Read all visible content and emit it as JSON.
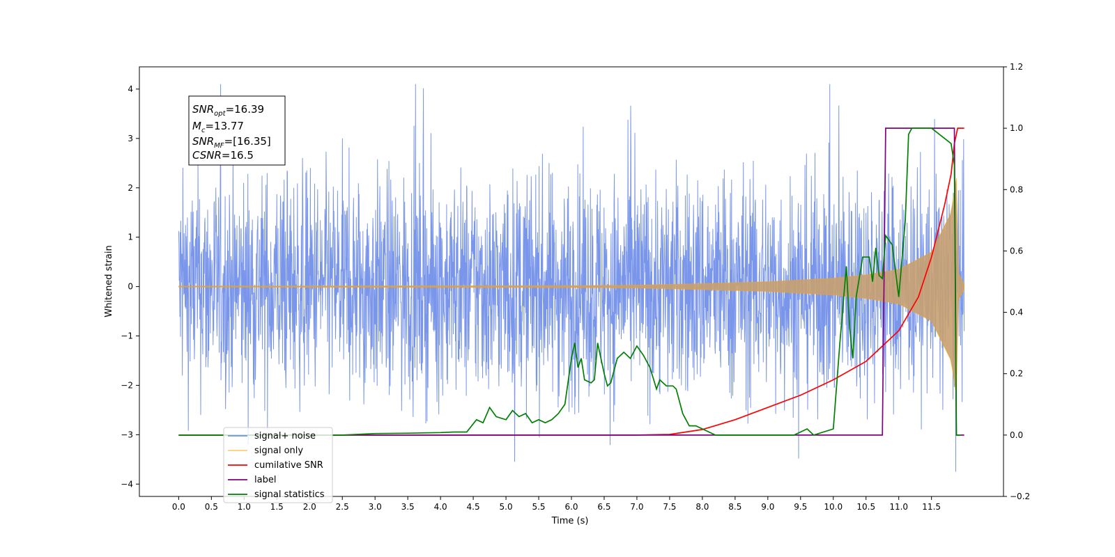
{
  "chart_data": {
    "type": "line",
    "xlabel": "Time (s)",
    "ylabel": "Whitened strain",
    "xlim": [
      -0.6,
      12.6
    ],
    "ylim": [
      -4.25,
      4.45
    ],
    "y2lim": [
      -0.2,
      1.2
    ],
    "x_ticks": [
      "0.0",
      "0.5",
      "1.0",
      "1.5",
      "2.0",
      "2.5",
      "3.0",
      "3.5",
      "4.0",
      "4.5",
      "5.0",
      "5.5",
      "6.0",
      "6.5",
      "7.0",
      "7.5",
      "8.0",
      "8.5",
      "9.0",
      "9.5",
      "10.0",
      "10.5",
      "11.0",
      "11.5"
    ],
    "y_ticks": [
      "4",
      "3",
      "2",
      "1",
      "0",
      "−1",
      "−2",
      "−3",
      "−4"
    ],
    "y2_ticks": [
      "1.2",
      "1.0",
      "0.8",
      "0.6",
      "0.4",
      "0.2",
      "0.0",
      "−0.2"
    ],
    "grid": false,
    "legend_position": "lower-left",
    "annotation": {
      "lines": [
        {
          "name": "SNR",
          "sub": "opt",
          "value": "=16.39"
        },
        {
          "name": "M",
          "sub": "c",
          "value": "=13.77"
        },
        {
          "name": "SNR",
          "sub": "MF",
          "value": "=[16.35]"
        },
        {
          "name": "CSNR",
          "sub": "",
          "value": "=16.5"
        }
      ]
    },
    "series": [
      {
        "name": "signal+ noise",
        "axis": "left",
        "color": "#4169e1",
        "opacity": 0.7,
        "envelope": {
          "t_start": 0.0,
          "t_end": 12.0,
          "typical_abs": 1.3,
          "max": 4.1,
          "min": -3.75
        }
      },
      {
        "name": "signal only",
        "axis": "left",
        "color": "#ffa500",
        "opacity": 0.55,
        "chirp_envelope": {
          "t": [
            0,
            6,
            7,
            8,
            9,
            10,
            10.5,
            11,
            11.5,
            11.8,
            11.88,
            11.9,
            12.0
          ],
          "amp": [
            0.01,
            0.02,
            0.03,
            0.06,
            0.1,
            0.17,
            0.24,
            0.35,
            0.7,
            1.5,
            2.2,
            0.3,
            0.05
          ]
        }
      },
      {
        "name": "cumilative SNR",
        "axis": "right",
        "color": "#ff0000",
        "x": [
          0.0,
          7.0,
          7.5,
          8.0,
          8.5,
          9.0,
          9.5,
          10.0,
          10.5,
          11.0,
          11.3,
          11.5,
          11.7,
          11.8,
          11.85,
          11.9,
          12.0
        ],
        "y": [
          0.0,
          0.0,
          0.002,
          0.018,
          0.05,
          0.09,
          0.13,
          0.18,
          0.24,
          0.34,
          0.45,
          0.58,
          0.75,
          0.85,
          0.95,
          1.0,
          1.0
        ]
      },
      {
        "name": "label",
        "axis": "right",
        "color": "#800080",
        "x": [
          0.0,
          10.75,
          10.8,
          11.8,
          11.85,
          11.88,
          12.0
        ],
        "y": [
          0.0,
          0.0,
          1.0,
          1.0,
          1.0,
          0.0,
          0.0
        ]
      },
      {
        "name": "signal statistics",
        "axis": "right",
        "color": "#008000",
        "x": [
          0.0,
          2.5,
          3.0,
          3.5,
          4.0,
          4.2,
          4.4,
          4.55,
          4.65,
          4.75,
          4.85,
          5.0,
          5.1,
          5.2,
          5.3,
          5.4,
          5.5,
          5.6,
          5.7,
          5.8,
          5.9,
          6.0,
          6.05,
          6.1,
          6.15,
          6.2,
          6.3,
          6.35,
          6.4,
          6.5,
          6.55,
          6.6,
          6.7,
          6.8,
          6.9,
          7.0,
          7.1,
          7.2,
          7.3,
          7.35,
          7.45,
          7.55,
          7.6,
          7.7,
          7.8,
          7.9,
          8.0,
          8.1,
          8.2,
          8.3,
          8.4,
          8.6,
          9.0,
          9.4,
          9.6,
          9.7,
          10.0,
          10.1,
          10.2,
          10.25,
          10.3,
          10.35,
          10.45,
          10.55,
          10.6,
          10.65,
          10.7,
          10.75,
          10.8,
          10.9,
          11.0,
          11.1,
          11.15,
          11.2,
          11.3,
          11.5,
          11.8,
          11.85,
          11.88,
          11.95
        ],
        "y": [
          0.0,
          0.0,
          0.005,
          0.006,
          0.008,
          0.01,
          0.01,
          0.05,
          0.04,
          0.09,
          0.06,
          0.05,
          0.08,
          0.06,
          0.07,
          0.04,
          0.05,
          0.04,
          0.05,
          0.07,
          0.1,
          0.25,
          0.3,
          0.22,
          0.25,
          0.18,
          0.17,
          0.18,
          0.3,
          0.2,
          0.16,
          0.17,
          0.25,
          0.27,
          0.25,
          0.29,
          0.26,
          0.22,
          0.15,
          0.18,
          0.16,
          0.16,
          0.15,
          0.07,
          0.03,
          0.03,
          0.02,
          0.01,
          0.0,
          0.0,
          0.0,
          0.0,
          0.0,
          0.0,
          0.02,
          0.0,
          0.02,
          0.3,
          0.55,
          0.35,
          0.25,
          0.45,
          0.58,
          0.58,
          0.5,
          0.61,
          0.52,
          0.51,
          0.65,
          0.62,
          0.45,
          0.7,
          0.98,
          1.0,
          1.0,
          1.0,
          0.95,
          0.88,
          0.0,
          0.0
        ]
      }
    ]
  }
}
